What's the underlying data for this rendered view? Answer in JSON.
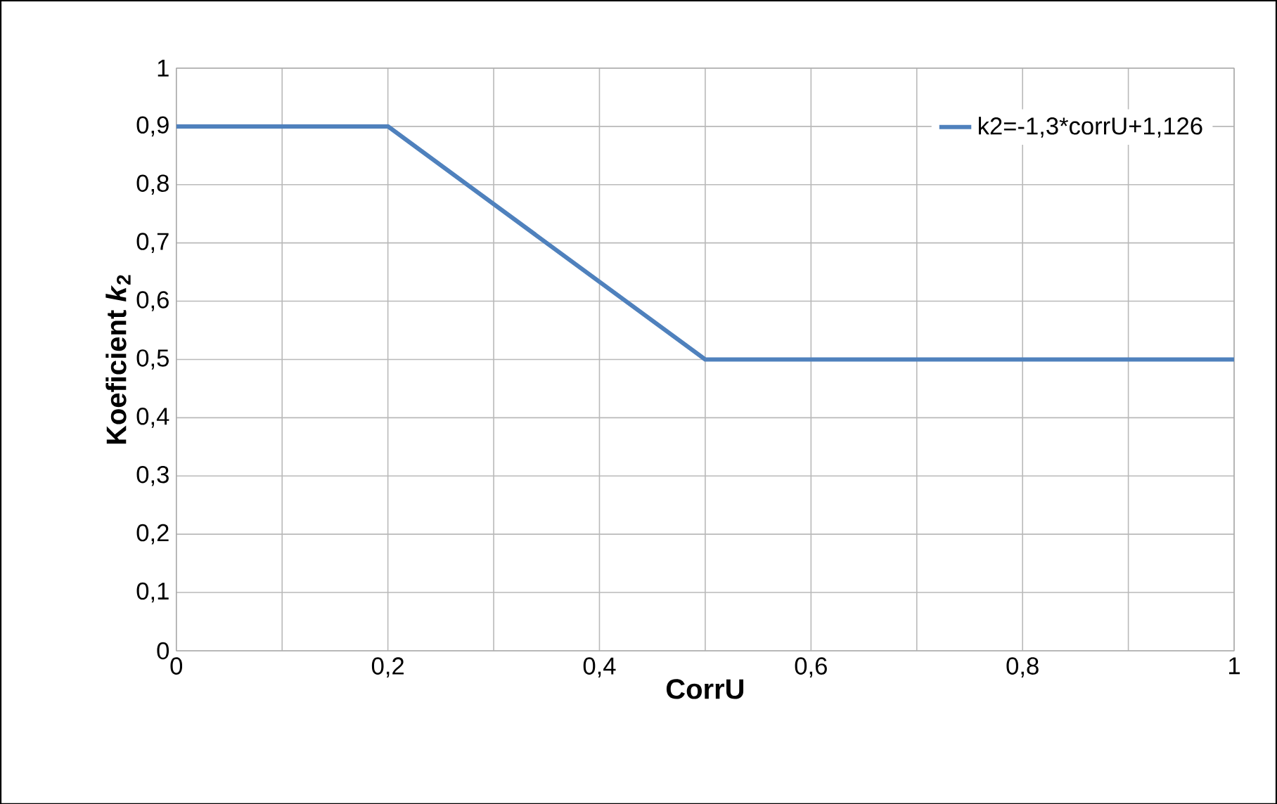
{
  "chart_data": {
    "type": "line",
    "xlabel": "CorrU",
    "ylabel": "Koeficient *k*$_{2}$",
    "x": [
      0,
      0.2,
      0.5,
      1
    ],
    "series": [
      {
        "name": "k2=-1,3*corrU+1,126",
        "color": "#4f81bd",
        "values": [
          0.9,
          0.9,
          0.5,
          0.5
        ]
      }
    ],
    "xlim": [
      0,
      1
    ],
    "ylim": [
      0,
      1
    ],
    "xticks": [
      {
        "value": 0,
        "label": "0"
      },
      {
        "value": 0.1,
        "label": null
      },
      {
        "value": 0.2,
        "label": "0,2"
      },
      {
        "value": 0.3,
        "label": null
      },
      {
        "value": 0.4,
        "label": "0,4"
      },
      {
        "value": 0.5,
        "label": null
      },
      {
        "value": 0.6,
        "label": "0,6"
      },
      {
        "value": 0.7,
        "label": null
      },
      {
        "value": 0.8,
        "label": "0,8"
      },
      {
        "value": 0.9,
        "label": null
      },
      {
        "value": 1,
        "label": "1"
      }
    ],
    "yticks": [
      {
        "value": 0,
        "label": "0"
      },
      {
        "value": 0.1,
        "label": "0,1"
      },
      {
        "value": 0.2,
        "label": "0,2"
      },
      {
        "value": 0.3,
        "label": "0,3"
      },
      {
        "value": 0.4,
        "label": "0,4"
      },
      {
        "value": 0.5,
        "label": "0,5"
      },
      {
        "value": 0.6,
        "label": "0,6"
      },
      {
        "value": 0.7,
        "label": "0,7"
      },
      {
        "value": 0.8,
        "label": "0,8"
      },
      {
        "value": 0.9,
        "label": "0,9"
      },
      {
        "value": 1,
        "label": "1"
      }
    ],
    "grid": true,
    "legend": "top right",
    "marker": "none",
    "line_style": "solid"
  }
}
